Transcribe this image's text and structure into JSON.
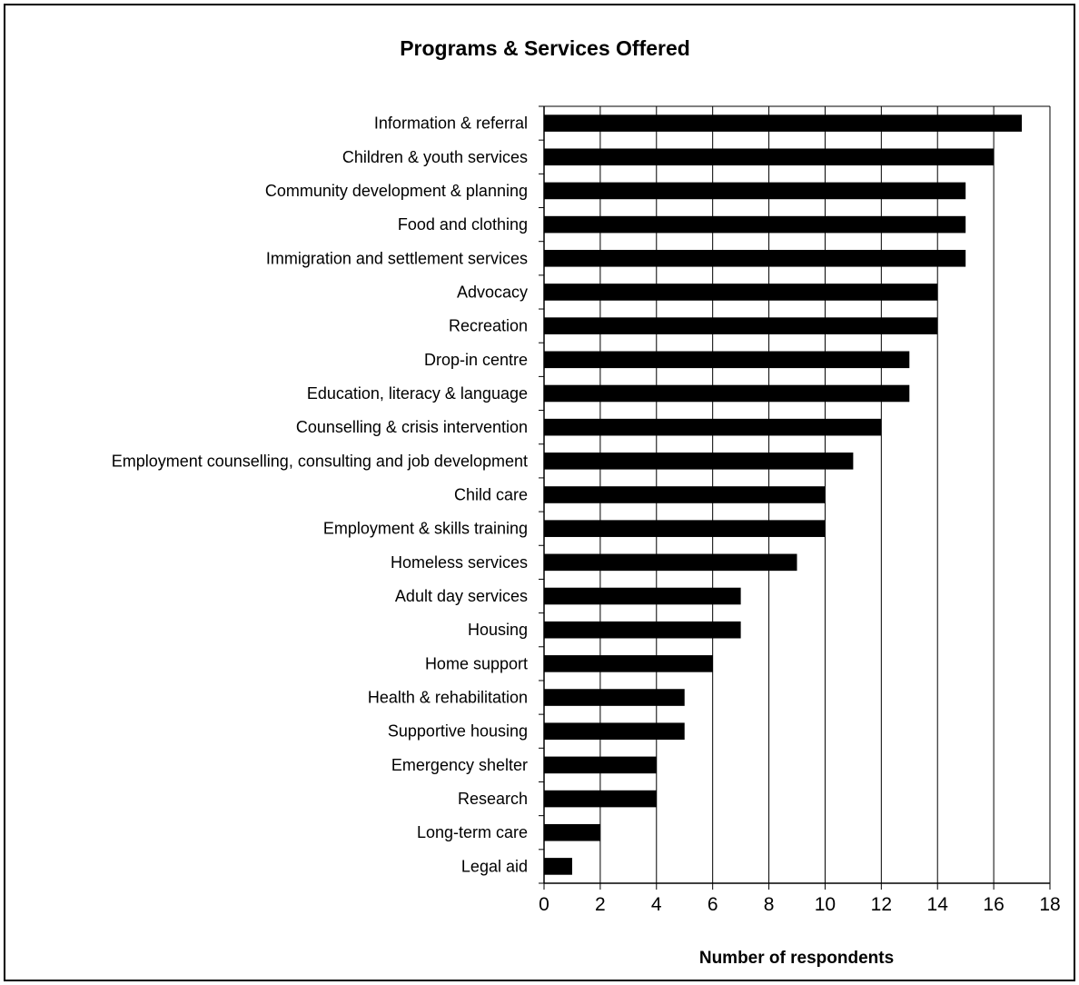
{
  "chart_data": {
    "type": "bar",
    "orientation": "horizontal",
    "title": "Programs & Services Offered",
    "xlabel": "Number of respondents",
    "ylabel": "",
    "xlim": [
      0,
      18
    ],
    "xticks": [
      0,
      2,
      4,
      6,
      8,
      10,
      12,
      14,
      16,
      18
    ],
    "grid": "vertical",
    "legend": "none",
    "bar_color": "#000000",
    "categories": [
      "Information & referral",
      "Children & youth services",
      "Community development & planning",
      "Food and clothing",
      "Immigration and settlement services",
      "Advocacy",
      "Recreation",
      "Drop-in centre",
      "Education, literacy & language",
      "Counselling & crisis intervention",
      "Employment counselling, consulting and job development",
      "Child care",
      "Employment & skills training",
      "Homeless services",
      "Adult day services",
      "Housing",
      "Home support",
      "Health & rehabilitation",
      "Supportive housing",
      "Emergency shelter",
      "Research",
      "Long-term care",
      "Legal aid"
    ],
    "values": [
      17,
      16,
      15,
      15,
      15,
      14,
      14,
      13,
      13,
      12,
      11,
      10,
      10,
      9,
      7,
      7,
      6,
      5,
      5,
      4,
      4,
      2,
      1
    ]
  }
}
